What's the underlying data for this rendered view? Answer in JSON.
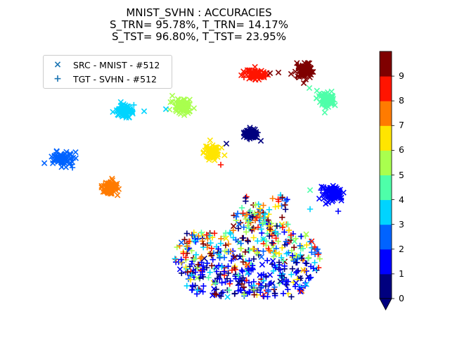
{
  "chart_data": {
    "type": "scatter",
    "title": [
      "MNIST_SVHN : ACCURACIES",
      "S_TRN= 95.78%, T_TRN= 14.17%",
      "S_TST= 96.80%, T_TST= 23.95%"
    ],
    "legend": {
      "placement": "top-left",
      "entries": [
        {
          "marker": "×",
          "label": "SRC - MNIST - #512"
        },
        {
          "marker": "+",
          "label": "TGT - SVHN - #512"
        }
      ]
    },
    "axes_visible": false,
    "colorbar": {
      "ticks": [
        "0",
        "1",
        "2",
        "3",
        "4",
        "5",
        "6",
        "7",
        "8",
        "9"
      ],
      "colors": [
        "#00007f",
        "#0000ff",
        "#0063ff",
        "#00d4ff",
        "#4effa9",
        "#a9ff4e",
        "#ffe500",
        "#ff7b00",
        "#ff1400",
        "#7f0000"
      ],
      "extend": "min"
    },
    "clusters": [
      {
        "class": 0,
        "center": [
          357,
          190
        ],
        "spread": [
          9,
          6
        ],
        "marker": "x"
      },
      {
        "class": 1,
        "center": [
          473,
          275
        ],
        "spread": [
          15,
          12
        ],
        "marker": "x"
      },
      {
        "class": 2,
        "center": [
          88,
          226
        ],
        "spread": [
          13,
          9
        ],
        "marker": "x"
      },
      {
        "class": 3,
        "center": [
          178,
          158
        ],
        "spread": [
          11,
          7
        ],
        "marker": "x"
      },
      {
        "class": 4,
        "center": [
          465,
          140
        ],
        "spread": [
          13,
          11
        ],
        "marker": "x"
      },
      {
        "class": 5,
        "center": [
          260,
          150
        ],
        "spread": [
          12,
          10
        ],
        "marker": "x"
      },
      {
        "class": 6,
        "center": [
          302,
          217
        ],
        "spread": [
          10,
          8
        ],
        "marker": "x"
      },
      {
        "class": 7,
        "center": [
          156,
          266
        ],
        "spread": [
          10,
          10
        ],
        "marker": "x"
      },
      {
        "class": 8,
        "center": [
          364,
          106
        ],
        "spread": [
          13,
          7
        ],
        "marker": "x"
      },
      {
        "class": 9,
        "center": [
          431,
          100
        ],
        "spread": [
          11,
          10
        ],
        "marker": "x"
      }
    ],
    "target_cloud": {
      "marker": "+",
      "x_range": [
        248,
        455
      ],
      "y_range": [
        278,
        422
      ],
      "classes": "mixed 0-9"
    }
  }
}
